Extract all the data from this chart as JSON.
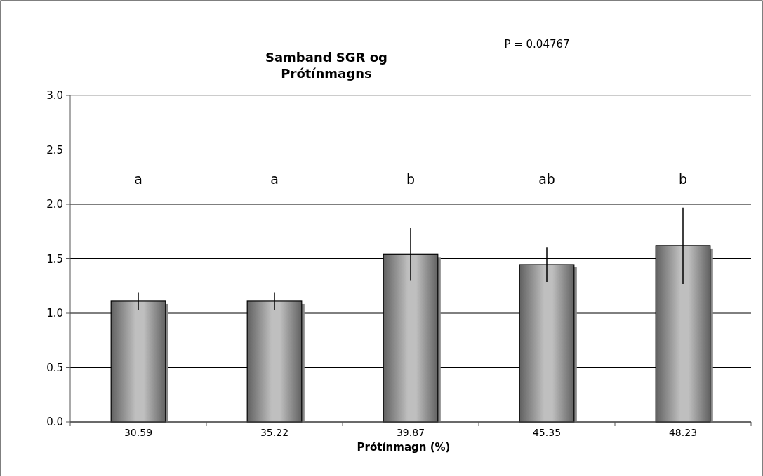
{
  "chart_data": {
    "type": "bar",
    "title": "Samband SGR og\nPrótínmagns",
    "xlabel": "Prótínmagn (%)",
    "categories": [
      "30.59",
      "35.22",
      "39.87",
      "45.35",
      "48.23"
    ],
    "values": [
      1.11,
      1.11,
      1.54,
      1.445,
      1.62
    ],
    "errors": [
      0.08,
      0.08,
      0.24,
      0.16,
      0.35
    ],
    "color": "#9a9a9a",
    "ylim": [
      0,
      3
    ],
    "yticks": [
      {
        "value": 0,
        "label": "0.0"
      },
      {
        "value": 0.5,
        "label": "0.5"
      },
      {
        "value": 1,
        "label": "1.0"
      },
      {
        "value": 1.5,
        "label": "1.5"
      },
      {
        "value": 2,
        "label": "2.0"
      },
      {
        "value": 2.5,
        "label": "2.5"
      },
      {
        "value": 3,
        "label": "3.0"
      }
    ],
    "grid": "y",
    "annotations": [
      "a",
      "a",
      "b",
      "ab",
      "b",
      "P = 0.04767"
    ]
  }
}
